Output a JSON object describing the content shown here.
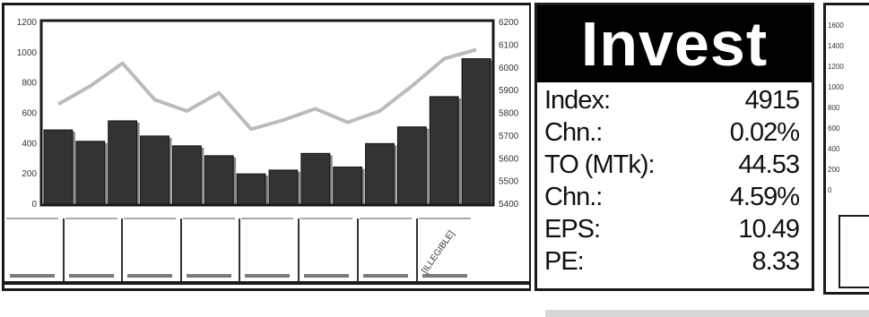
{
  "chart_data": {
    "type": "bar",
    "categories": [
      "",
      "",
      "",
      "",
      "",
      "",
      "",
      "",
      "",
      "",
      "",
      "",
      "",
      ""
    ],
    "series": [
      {
        "values": [
          490,
          415,
          550,
          450,
          385,
          320,
          200,
          225,
          335,
          245,
          400,
          510,
          710,
          960
        ],
        "axis": "left"
      },
      {
        "values": [
          5840,
          5920,
          6020,
          5860,
          5810,
          5890,
          5730,
          5770,
          5820,
          5760,
          5810,
          5920,
          6040,
          6080
        ],
        "axis": "right"
      }
    ],
    "left_ticks": [
      "1200",
      "1000",
      "800",
      "600",
      "400",
      "200",
      "0"
    ],
    "right_ticks": [
      "6200",
      "6100",
      "6000",
      "5900",
      "5800",
      "5700",
      "5600",
      "5500",
      "5400"
    ],
    "ylim_left": [
      0,
      1200
    ],
    "ylim_right": [
      5400,
      6200
    ],
    "bar_color": "#333333",
    "line_color": "#bbbbbb"
  },
  "thumbnail_label": "[ILLEGIBLE]",
  "stats": {
    "title": "Invest",
    "rows": [
      {
        "label": "Index:",
        "value": "4915"
      },
      {
        "label": "Chn.:",
        "value": "0.02%"
      },
      {
        "label": "TO (MTk):",
        "value": "44.53"
      },
      {
        "label": "Chn.:",
        "value": "4.59%"
      },
      {
        "label": "EPS:",
        "value": "10.49"
      },
      {
        "label": "PE:",
        "value": "8.33"
      }
    ]
  },
  "right_chart": {
    "ticks": [
      "1600",
      "1400",
      "1200",
      "1000",
      "800",
      "600",
      "400",
      "200",
      "0"
    ]
  }
}
